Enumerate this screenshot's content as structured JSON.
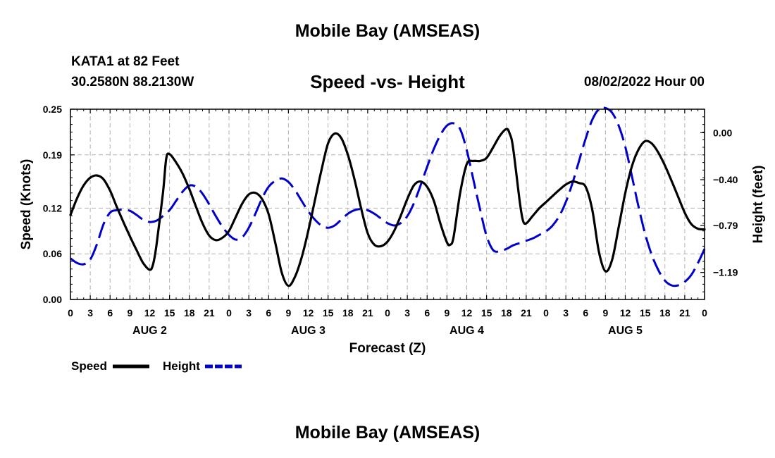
{
  "header": {
    "title": "Mobile Bay (AMSEAS)",
    "station": "KATA1 at 82 Feet",
    "coords": "30.2580N  88.2130W",
    "subtitle": "Speed -vs- Height",
    "datetime": "08/02/2022 Hour 00"
  },
  "footer": {
    "title": "Mobile Bay (AMSEAS)"
  },
  "legend": {
    "speed_label": "Speed",
    "height_label": "Height",
    "speed_color": "#000000",
    "height_color": "#0000cc"
  },
  "chart_data": {
    "type": "line",
    "title": "Speed -vs- Height",
    "xlabel": "Forecast (Z)",
    "ylabel_left": "Speed (Knots)",
    "ylabel_right": "Height (feet)",
    "grid": true,
    "x_range_hours": [
      0,
      96
    ],
    "x_tick_labels": [
      "0",
      "3",
      "6",
      "9",
      "12",
      "15",
      "18",
      "21",
      "0",
      "3",
      "6",
      "9",
      "12",
      "15",
      "18",
      "21",
      "0",
      "3",
      "6",
      "9",
      "12",
      "15",
      "18",
      "21",
      "0",
      "3",
      "6",
      "9",
      "12",
      "15",
      "18",
      "21",
      "0"
    ],
    "day_labels": [
      "AUG 2",
      "AUG 3",
      "AUG 4",
      "AUG 5"
    ],
    "left_axis": {
      "ylim": [
        0.0,
        0.25
      ],
      "ticks": [
        0.0,
        0.06,
        0.12,
        0.19,
        0.25
      ],
      "tick_labels": [
        "0.00",
        "0.06",
        "0.12",
        "0.19",
        "0.25"
      ]
    },
    "right_axis": {
      "ylim": [
        -1.42,
        0.2
      ],
      "ticks": [
        -1.19,
        -0.79,
        -0.4,
        0.0
      ],
      "tick_labels": [
        "−1.19",
        "−0.79",
        "−0.40",
        "0.00"
      ]
    },
    "series": [
      {
        "name": "Speed",
        "axis": "left",
        "color": "#000000",
        "dash": "solid",
        "points": [
          [
            0,
            0.111
          ],
          [
            1,
            0.133
          ],
          [
            2,
            0.15
          ],
          [
            3,
            0.16
          ],
          [
            4,
            0.163
          ],
          [
            5,
            0.158
          ],
          [
            6,
            0.143
          ],
          [
            7,
            0.122
          ],
          [
            8,
            0.102
          ],
          [
            9,
            0.083
          ],
          [
            10,
            0.065
          ],
          [
            11,
            0.048
          ],
          [
            12,
            0.039
          ],
          [
            12.5,
            0.046
          ],
          [
            13,
            0.07
          ],
          [
            14,
            0.14
          ],
          [
            14.5,
            0.185
          ],
          [
            15,
            0.191
          ],
          [
            16,
            0.18
          ],
          [
            17,
            0.165
          ],
          [
            18,
            0.145
          ],
          [
            19,
            0.122
          ],
          [
            20,
            0.1
          ],
          [
            21,
            0.084
          ],
          [
            22,
            0.078
          ],
          [
            23,
            0.081
          ],
          [
            24,
            0.09
          ],
          [
            25,
            0.108
          ],
          [
            26,
            0.126
          ],
          [
            27,
            0.138
          ],
          [
            28,
            0.14
          ],
          [
            29,
            0.132
          ],
          [
            30,
            0.112
          ],
          [
            31,
            0.075
          ],
          [
            32,
            0.035
          ],
          [
            33,
            0.018
          ],
          [
            34,
            0.03
          ],
          [
            35,
            0.055
          ],
          [
            36,
            0.09
          ],
          [
            37,
            0.13
          ],
          [
            38,
            0.17
          ],
          [
            39,
            0.205
          ],
          [
            40,
            0.218
          ],
          [
            41,
            0.212
          ],
          [
            42,
            0.19
          ],
          [
            43,
            0.158
          ],
          [
            44,
            0.12
          ],
          [
            45,
            0.087
          ],
          [
            46,
            0.072
          ],
          [
            47,
            0.07
          ],
          [
            48,
            0.076
          ],
          [
            49,
            0.09
          ],
          [
            50,
            0.11
          ],
          [
            51,
            0.132
          ],
          [
            52,
            0.15
          ],
          [
            53,
            0.155
          ],
          [
            54,
            0.148
          ],
          [
            55,
            0.13
          ],
          [
            56,
            0.1
          ],
          [
            57,
            0.075
          ],
          [
            57.5,
            0.072
          ],
          [
            58,
            0.082
          ],
          [
            59,
            0.14
          ],
          [
            60,
            0.178
          ],
          [
            61,
            0.182
          ],
          [
            62,
            0.182
          ],
          [
            63,
            0.186
          ],
          [
            64,
            0.2
          ],
          [
            65,
            0.215
          ],
          [
            66,
            0.224
          ],
          [
            66.5,
            0.218
          ],
          [
            67,
            0.2
          ],
          [
            68,
            0.13
          ],
          [
            68.5,
            0.104
          ],
          [
            69,
            0.1
          ],
          [
            70,
            0.11
          ],
          [
            71,
            0.12
          ],
          [
            72,
            0.128
          ],
          [
            73,
            0.136
          ],
          [
            74,
            0.144
          ],
          [
            75,
            0.151
          ],
          [
            76,
            0.155
          ],
          [
            77,
            0.153
          ],
          [
            78,
            0.148
          ],
          [
            79,
            0.118
          ],
          [
            80,
            0.063
          ],
          [
            81,
            0.037
          ],
          [
            82,
            0.052
          ],
          [
            83,
            0.095
          ],
          [
            84,
            0.14
          ],
          [
            85,
            0.175
          ],
          [
            86,
            0.197
          ],
          [
            87,
            0.208
          ],
          [
            88,
            0.205
          ],
          [
            89,
            0.193
          ],
          [
            90,
            0.176
          ],
          [
            91,
            0.156
          ],
          [
            92,
            0.135
          ],
          [
            93,
            0.114
          ],
          [
            94,
            0.099
          ],
          [
            95,
            0.093
          ],
          [
            96,
            0.092
          ]
        ]
      },
      {
        "name": "Height",
        "axis": "right",
        "color": "#0000cc",
        "dash": "dashed",
        "points": [
          [
            0,
            -1.07
          ],
          [
            1,
            -1.11
          ],
          [
            2,
            -1.12
          ],
          [
            3,
            -1.08
          ],
          [
            4,
            -0.95
          ],
          [
            5,
            -0.78
          ],
          [
            6,
            -0.68
          ],
          [
            7,
            -0.66
          ],
          [
            8,
            -0.655
          ],
          [
            9,
            -0.665
          ],
          [
            10,
            -0.7
          ],
          [
            11,
            -0.74
          ],
          [
            12,
            -0.76
          ],
          [
            13,
            -0.75
          ],
          [
            14,
            -0.71
          ],
          [
            15,
            -0.66
          ],
          [
            16,
            -0.58
          ],
          [
            17,
            -0.5
          ],
          [
            18,
            -0.45
          ],
          [
            19,
            -0.46
          ],
          [
            20,
            -0.52
          ],
          [
            21,
            -0.61
          ],
          [
            22,
            -0.71
          ],
          [
            23,
            -0.8
          ],
          [
            24,
            -0.87
          ],
          [
            25,
            -0.91
          ],
          [
            26,
            -0.89
          ],
          [
            27,
            -0.81
          ],
          [
            28,
            -0.69
          ],
          [
            29,
            -0.56
          ],
          [
            30,
            -0.46
          ],
          [
            31,
            -0.41
          ],
          [
            32,
            -0.39
          ],
          [
            33,
            -0.42
          ],
          [
            34,
            -0.49
          ],
          [
            35,
            -0.58
          ],
          [
            36,
            -0.67
          ],
          [
            37,
            -0.74
          ],
          [
            38,
            -0.79
          ],
          [
            39,
            -0.81
          ],
          [
            40,
            -0.79
          ],
          [
            41,
            -0.74
          ],
          [
            42,
            -0.69
          ],
          [
            43,
            -0.66
          ],
          [
            44,
            -0.65
          ],
          [
            45,
            -0.66
          ],
          [
            46,
            -0.69
          ],
          [
            47,
            -0.73
          ],
          [
            48,
            -0.77
          ],
          [
            49,
            -0.79
          ],
          [
            50,
            -0.77
          ],
          [
            51,
            -0.71
          ],
          [
            52,
            -0.6
          ],
          [
            53,
            -0.45
          ],
          [
            54,
            -0.29
          ],
          [
            55,
            -0.14
          ],
          [
            56,
            -0.02
          ],
          [
            57,
            0.06
          ],
          [
            58,
            0.08
          ],
          [
            59,
            0.03
          ],
          [
            60,
            -0.15
          ],
          [
            61,
            -0.4
          ],
          [
            62,
            -0.65
          ],
          [
            63,
            -0.88
          ],
          [
            64,
            -1.0
          ],
          [
            65,
            -1.01
          ],
          [
            66,
            -0.99
          ],
          [
            67,
            -0.96
          ],
          [
            68,
            -0.94
          ],
          [
            69,
            -0.92
          ],
          [
            70,
            -0.9
          ],
          [
            71,
            -0.87
          ],
          [
            72,
            -0.84
          ],
          [
            73,
            -0.79
          ],
          [
            74,
            -0.71
          ],
          [
            75,
            -0.59
          ],
          [
            76,
            -0.43
          ],
          [
            77,
            -0.24
          ],
          [
            78,
            -0.05
          ],
          [
            79,
            0.11
          ],
          [
            80,
            0.2
          ],
          [
            81,
            0.21
          ],
          [
            82,
            0.17
          ],
          [
            83,
            0.06
          ],
          [
            84,
            -0.12
          ],
          [
            85,
            -0.37
          ],
          [
            86,
            -0.63
          ],
          [
            87,
            -0.86
          ],
          [
            88,
            -1.04
          ],
          [
            89,
            -1.17
          ],
          [
            90,
            -1.26
          ],
          [
            91,
            -1.3
          ],
          [
            92,
            -1.3
          ],
          [
            93,
            -1.27
          ],
          [
            94,
            -1.21
          ],
          [
            95,
            -1.11
          ],
          [
            96,
            -0.99
          ]
        ]
      }
    ]
  }
}
